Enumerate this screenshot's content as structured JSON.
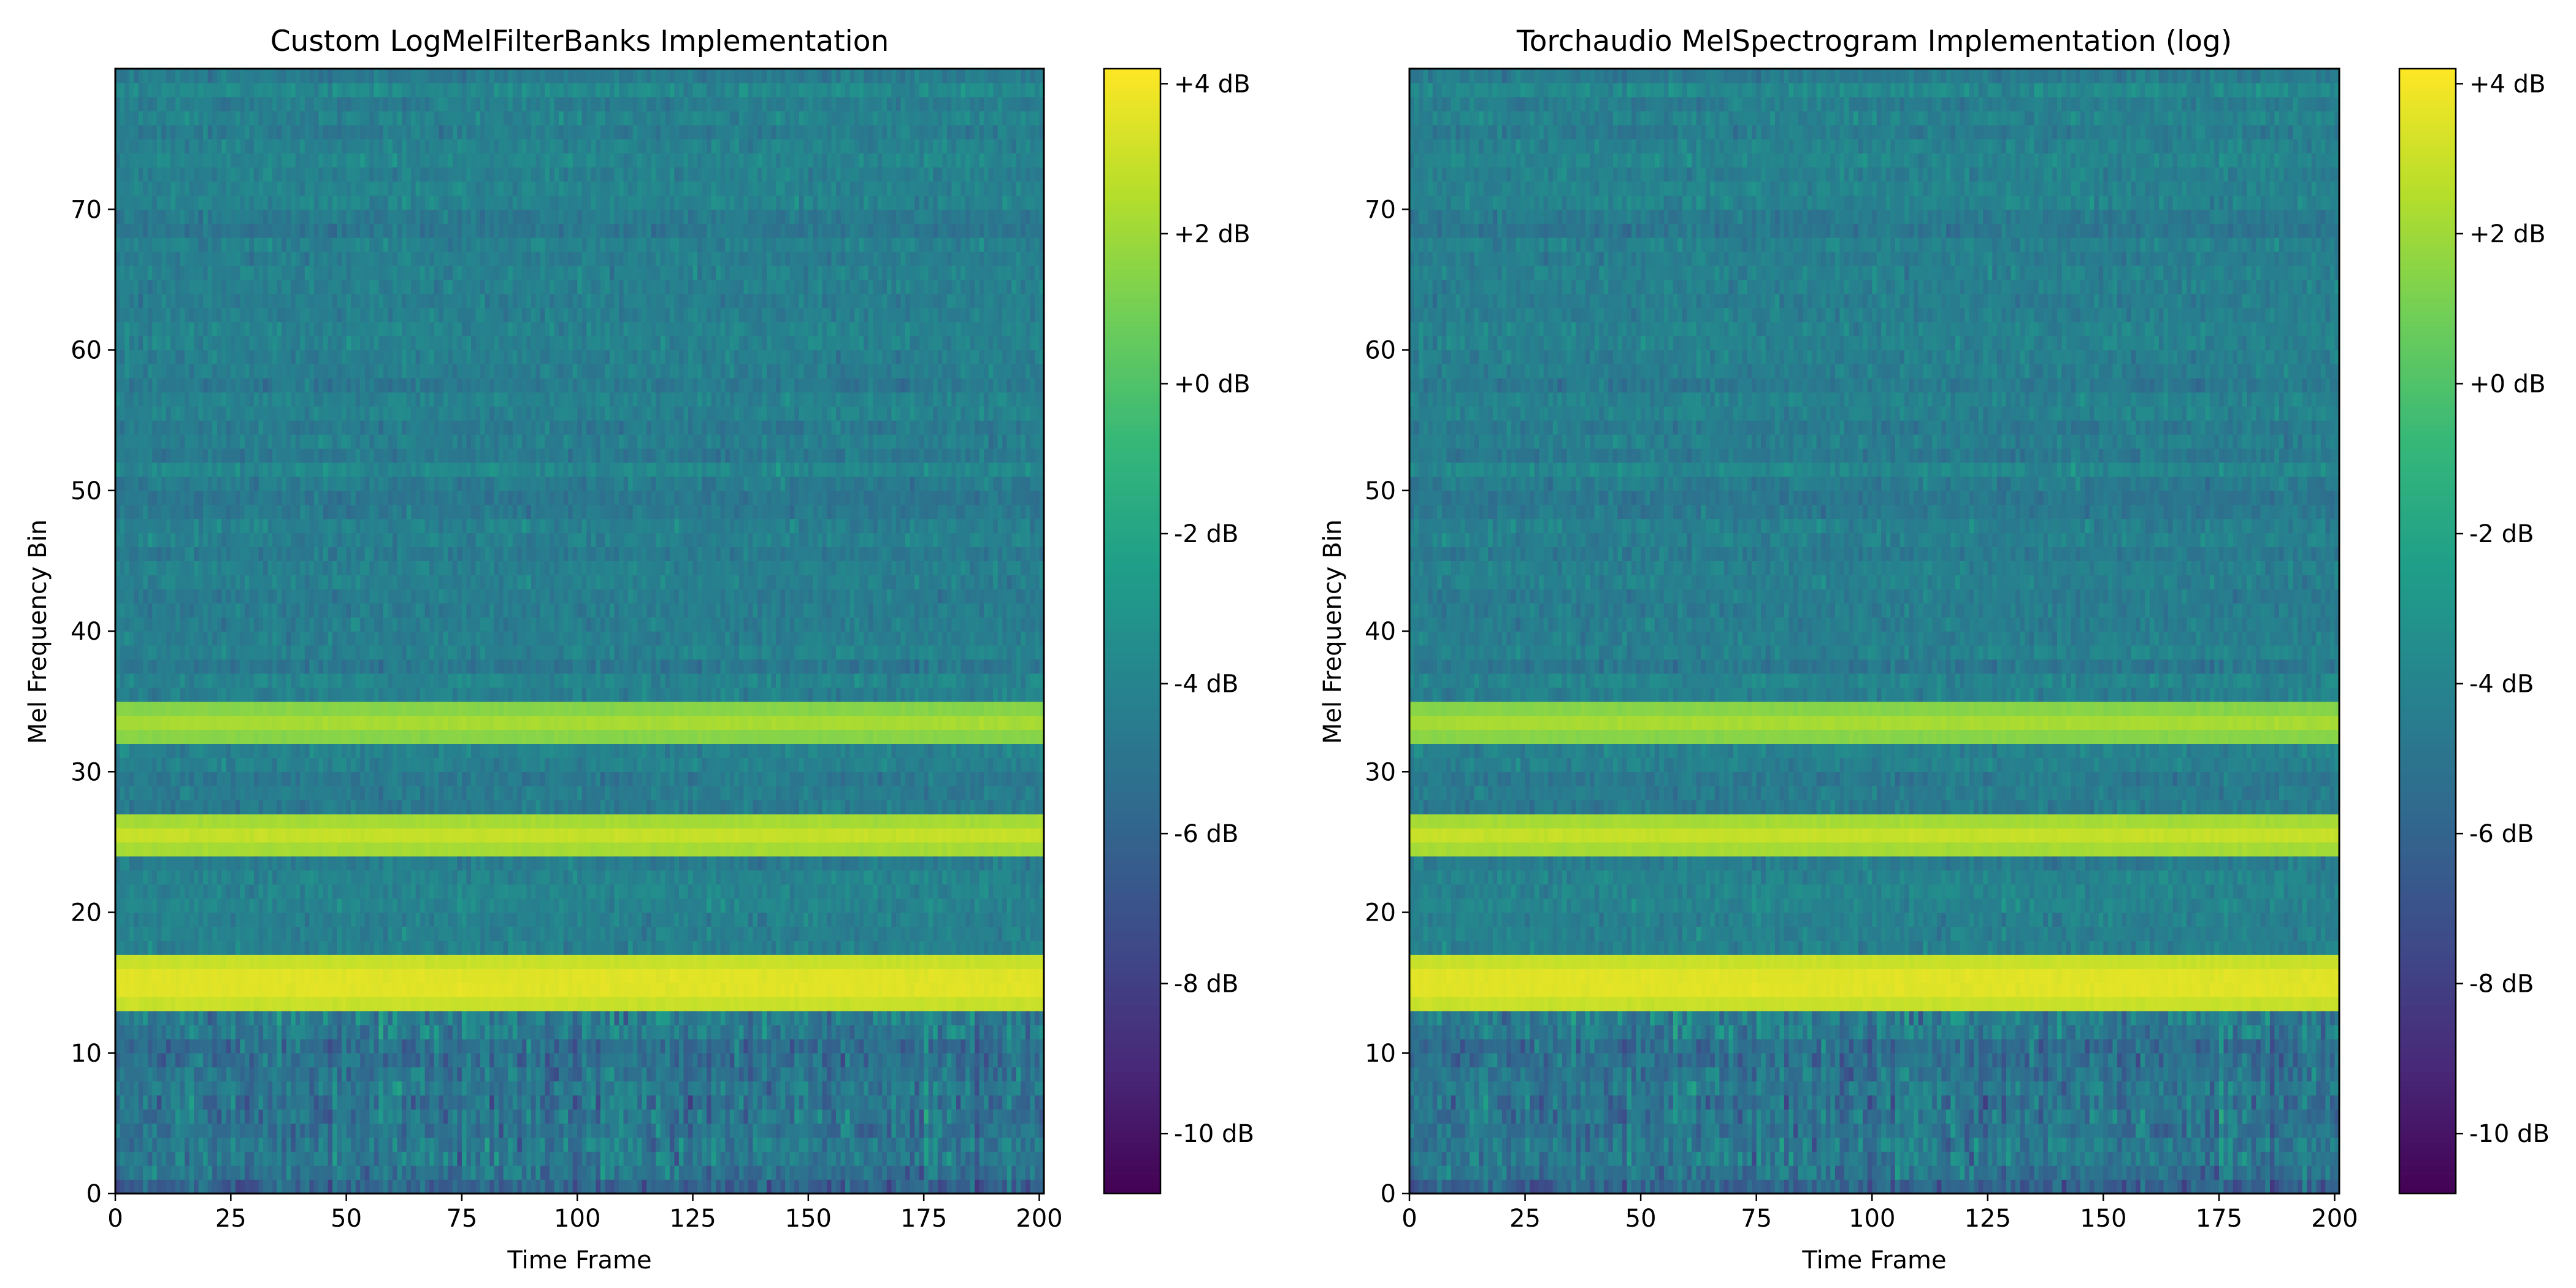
{
  "chart_data": [
    {
      "type": "heatmap",
      "title": "Custom LogMelFilterBanks Implementation",
      "xlabel": "Time Frame",
      "ylabel": "Mel Frequency Bin",
      "xlim": [
        0,
        201
      ],
      "ylim": [
        0,
        80
      ],
      "x_ticks": [
        0,
        25,
        50,
        75,
        100,
        125,
        150,
        175,
        200
      ],
      "y_ticks": [
        0,
        10,
        20,
        30,
        40,
        50,
        60,
        70
      ],
      "n_frames": 201,
      "n_bins": 80,
      "colormap": "viridis",
      "colorbar": {
        "vmin": -10.8,
        "vmax": 4.2,
        "ticks": [
          4,
          2,
          0,
          -2,
          -4,
          -6,
          -8,
          -10
        ],
        "tick_labels": [
          "+4 dB",
          "+2 dB",
          "+0 dB",
          "-2 dB",
          "-4 dB",
          "-6 dB",
          "-8 dB",
          "-10 dB"
        ]
      },
      "tone_bands": [
        {
          "bins": [
            13,
            16
          ],
          "level_db": 3.8
        },
        {
          "bins": [
            24,
            26
          ],
          "level_db": 2.9
        },
        {
          "bins": [
            32,
            34
          ],
          "level_db": 2.2
        }
      ],
      "background_db": {
        "low_bins_mean": -4.9,
        "high_bins_mean": -4.3
      }
    },
    {
      "type": "heatmap",
      "title": "Torchaudio MelSpectrogram Implementation (log)",
      "xlabel": "Time Frame",
      "ylabel": "Mel Frequency Bin",
      "xlim": [
        0,
        201
      ],
      "ylim": [
        0,
        80
      ],
      "x_ticks": [
        0,
        25,
        50,
        75,
        100,
        125,
        150,
        175,
        200
      ],
      "y_ticks": [
        0,
        10,
        20,
        30,
        40,
        50,
        60,
        70
      ],
      "n_frames": 201,
      "n_bins": 80,
      "colormap": "viridis",
      "colorbar": {
        "vmin": -10.8,
        "vmax": 4.2,
        "ticks": [
          4,
          2,
          0,
          -2,
          -4,
          -6,
          -8,
          -10
        ],
        "tick_labels": [
          "+4 dB",
          "+2 dB",
          "+0 dB",
          "-2 dB",
          "-4 dB",
          "-6 dB",
          "-8 dB",
          "-10 dB"
        ]
      },
      "tone_bands": [
        {
          "bins": [
            13,
            16
          ],
          "level_db": 3.8
        },
        {
          "bins": [
            24,
            26
          ],
          "level_db": 2.9
        },
        {
          "bins": [
            32,
            34
          ],
          "level_db": 2.2
        }
      ],
      "background_db": {
        "low_bins_mean": -4.9,
        "high_bins_mean": -4.3
      }
    }
  ]
}
